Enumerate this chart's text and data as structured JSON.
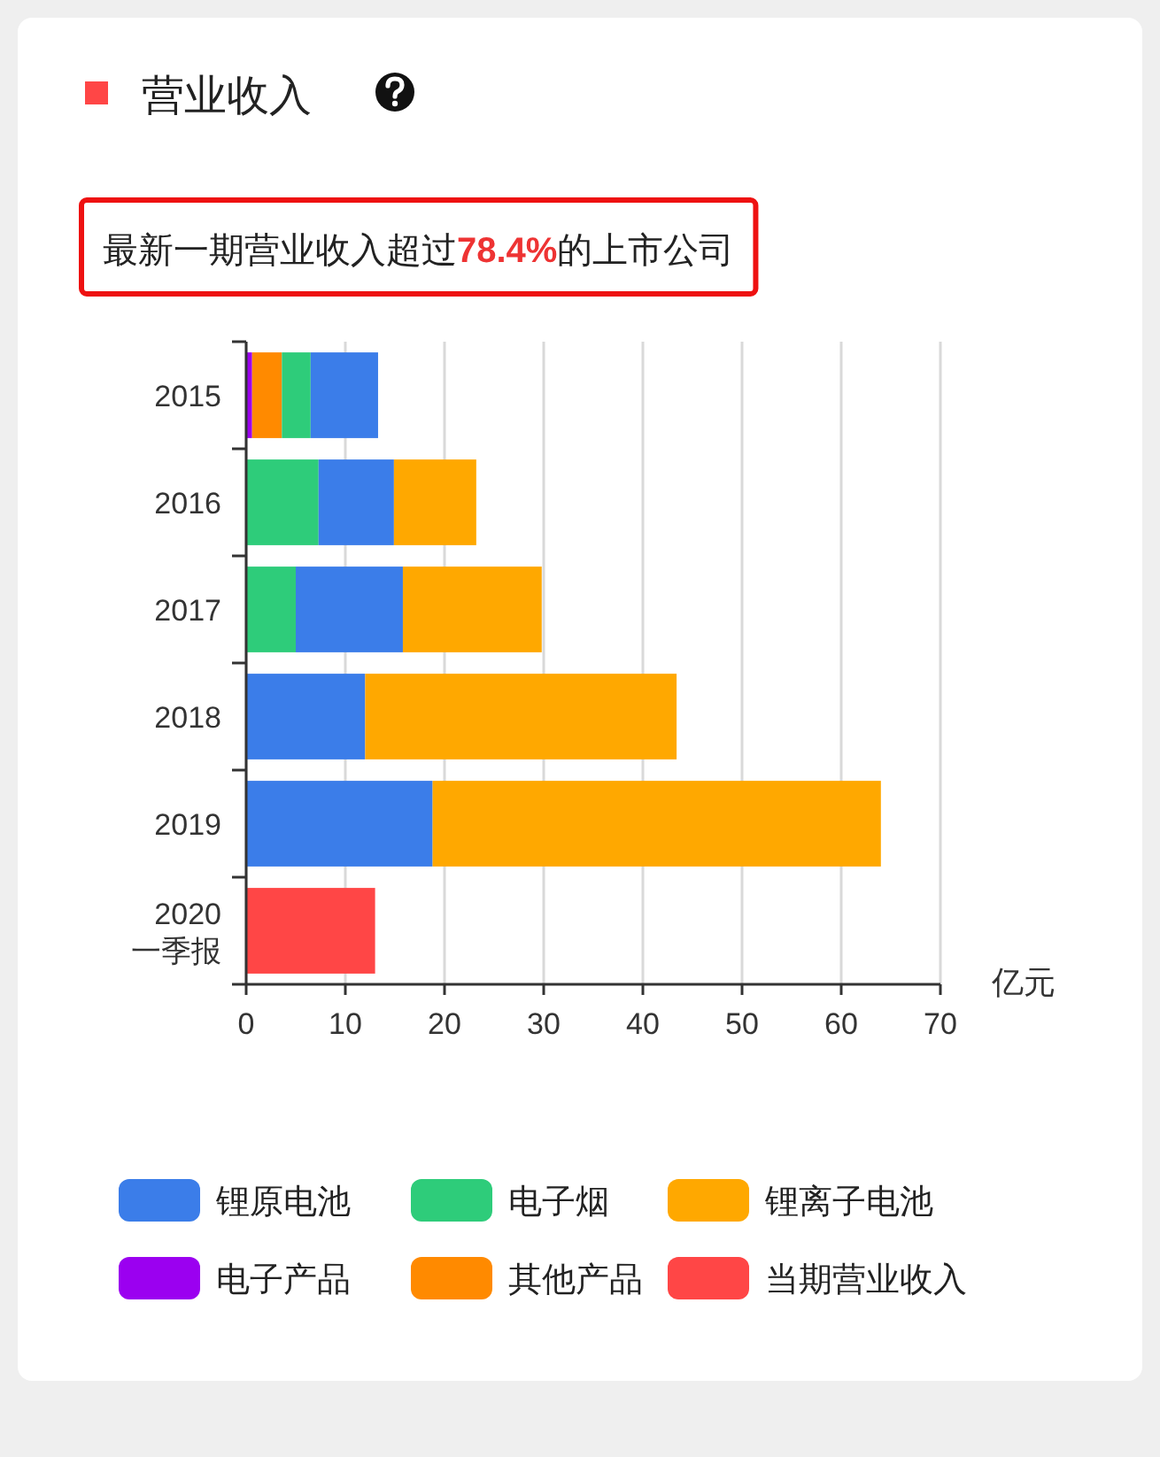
{
  "chart_data": {
    "type": "bar",
    "orientation": "horizontal",
    "stacked": true,
    "title": "营业收入",
    "subtitle": "最新一期营业收入超过78.4%的上市公司",
    "xlabel": "亿元",
    "categories": [
      "2015",
      "2016",
      "2017",
      "2018",
      "2019",
      "2020\n一季报"
    ],
    "series": [
      {
        "name": "电子产品",
        "color": "#9b00f0",
        "values": [
          0.6,
          null,
          null,
          null,
          null,
          null
        ]
      },
      {
        "name": "其他产品",
        "color": "#ff8a00",
        "values": [
          3.0,
          null,
          null,
          null,
          null,
          null
        ]
      },
      {
        "name": "电子烟",
        "color": "#2ecc7a",
        "values": [
          2.9,
          7.3,
          5.0,
          null,
          null,
          null
        ]
      },
      {
        "name": "锂原电池",
        "color": "#3b7de9",
        "values": [
          6.8,
          7.6,
          10.8,
          12.0,
          18.8,
          null
        ]
      },
      {
        "name": "锂离子电池",
        "color": "#ffa800",
        "values": [
          null,
          8.3,
          14.0,
          31.4,
          45.2,
          null
        ]
      },
      {
        "name": "当期营业收入",
        "color": "#ff4646",
        "values": [
          null,
          null,
          null,
          null,
          null,
          13.0
        ]
      }
    ],
    "xlim": [
      0,
      70
    ],
    "xticks": [
      0,
      10,
      20,
      30,
      40,
      50,
      60,
      70
    ],
    "grid": "x",
    "legend": "bottom"
  }
}
